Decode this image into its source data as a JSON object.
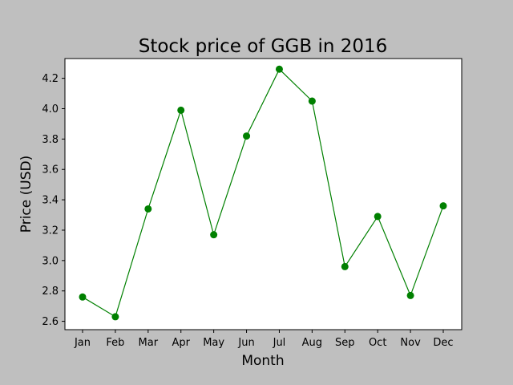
{
  "chart_data": {
    "type": "line",
    "title": "Stock price of GGB in 2016",
    "xlabel": "Month",
    "ylabel": "Price (USD)",
    "categories": [
      "Jan",
      "Feb",
      "Mar",
      "Apr",
      "May",
      "Jun",
      "Jul",
      "Aug",
      "Sep",
      "Oct",
      "Nov",
      "Dec"
    ],
    "series": [
      {
        "values": [
          2.76,
          2.63,
          3.34,
          3.99,
          3.17,
          3.82,
          4.26,
          4.05,
          2.96,
          3.29,
          2.77,
          3.36
        ]
      }
    ],
    "yticks": [
      "2.6",
      "2.8",
      "3.0",
      "3.2",
      "3.4",
      "3.6",
      "3.8",
      "4.0",
      "4.2"
    ],
    "ylim": [
      2.545,
      4.33
    ],
    "grid": false,
    "line_color": "#008000",
    "figure_background": "#bfbfbf",
    "plot_background": "#ffffff"
  }
}
